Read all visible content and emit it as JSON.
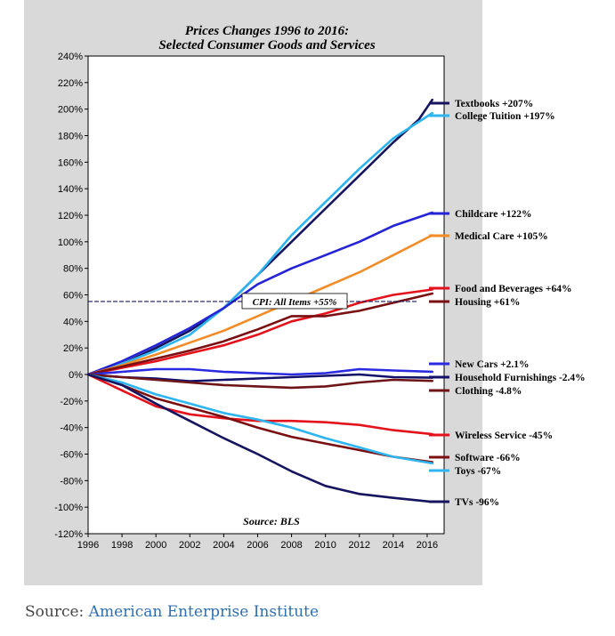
{
  "chart_data": {
    "type": "line",
    "title": "Prices Changes 1996 to 2016:",
    "subtitle": "Selected Consumer Goods and Services",
    "source_note": "Source: BLS",
    "x_ticks": [
      "1996",
      "1998",
      "2000",
      "2002",
      "2004",
      "2006",
      "2008",
      "2010",
      "2012",
      "2014",
      "2016"
    ],
    "xlim": [
      1996,
      2017
    ],
    "ylim": [
      -120,
      240
    ],
    "y_ticks": [
      "-120%",
      "-100%",
      "-80%",
      "-60%",
      "-40%",
      "-20%",
      "0%",
      "20%",
      "40%",
      "60%",
      "80%",
      "100%",
      "120%",
      "140%",
      "160%",
      "180%",
      "200%",
      "220%",
      "240%"
    ],
    "reference_line": {
      "label": "CPI: All Items +55%",
      "value": 55,
      "color": "#1a1a5e"
    },
    "series": [
      {
        "name": "Textbooks +207%",
        "final": 207,
        "color": "#16145e",
        "points": [
          [
            1996,
            0
          ],
          [
            1998,
            8
          ],
          [
            2000,
            20
          ],
          [
            2002,
            33
          ],
          [
            2004,
            50
          ],
          [
            2006,
            75
          ],
          [
            2008,
            100
          ],
          [
            2010,
            125
          ],
          [
            2012,
            150
          ],
          [
            2014,
            175
          ],
          [
            2015.5,
            192
          ],
          [
            2016.3,
            207
          ]
        ]
      },
      {
        "name": "College Tuition +197%",
        "final": 197,
        "color": "#2eb5f0",
        "points": [
          [
            1996,
            0
          ],
          [
            1998,
            8
          ],
          [
            2000,
            18
          ],
          [
            2002,
            30
          ],
          [
            2004,
            50
          ],
          [
            2006,
            75
          ],
          [
            2008,
            105
          ],
          [
            2010,
            130
          ],
          [
            2012,
            155
          ],
          [
            2014,
            178
          ],
          [
            2016.3,
            197
          ]
        ]
      },
      {
        "name": "Childcare +122%",
        "final": 122,
        "color": "#2424d6",
        "points": [
          [
            1996,
            0
          ],
          [
            1998,
            10
          ],
          [
            2000,
            22
          ],
          [
            2002,
            35
          ],
          [
            2004,
            50
          ],
          [
            2006,
            68
          ],
          [
            2008,
            80
          ],
          [
            2010,
            90
          ],
          [
            2012,
            100
          ],
          [
            2014,
            112
          ],
          [
            2016.3,
            122
          ]
        ]
      },
      {
        "name": "Medical Care +105%",
        "final": 105,
        "color": "#f28c28",
        "points": [
          [
            1996,
            0
          ],
          [
            1998,
            7
          ],
          [
            2000,
            15
          ],
          [
            2002,
            24
          ],
          [
            2004,
            33
          ],
          [
            2006,
            44
          ],
          [
            2008,
            55
          ],
          [
            2010,
            66
          ],
          [
            2012,
            77
          ],
          [
            2014,
            90
          ],
          [
            2016.3,
            105
          ]
        ]
      },
      {
        "name": "Food and Beverages +64%",
        "final": 64,
        "color": "#e3121c",
        "points": [
          [
            1996,
            0
          ],
          [
            1998,
            5
          ],
          [
            2000,
            10
          ],
          [
            2002,
            16
          ],
          [
            2004,
            22
          ],
          [
            2006,
            30
          ],
          [
            2008,
            40
          ],
          [
            2010,
            46
          ],
          [
            2012,
            54
          ],
          [
            2014,
            60
          ],
          [
            2016.3,
            64
          ]
        ]
      },
      {
        "name": "Housing +61%",
        "final": 61,
        "color": "#7a0f12",
        "points": [
          [
            1996,
            0
          ],
          [
            1998,
            6
          ],
          [
            2000,
            12
          ],
          [
            2002,
            18
          ],
          [
            2004,
            25
          ],
          [
            2006,
            34
          ],
          [
            2008,
            44
          ],
          [
            2010,
            44
          ],
          [
            2012,
            48
          ],
          [
            2014,
            54
          ],
          [
            2016.3,
            61
          ]
        ]
      },
      {
        "name": "New Cars +2.1%",
        "final": 2.1,
        "color": "#2a2ae0",
        "points": [
          [
            1996,
            0
          ],
          [
            1998,
            2
          ],
          [
            2000,
            4
          ],
          [
            2002,
            4
          ],
          [
            2004,
            2
          ],
          [
            2006,
            1
          ],
          [
            2008,
            0
          ],
          [
            2010,
            1
          ],
          [
            2012,
            4
          ],
          [
            2014,
            3
          ],
          [
            2016.3,
            2.1
          ]
        ]
      },
      {
        "name": "Household Furnishings -2.4%",
        "final": -2.4,
        "color": "#12126a",
        "points": [
          [
            1996,
            0
          ],
          [
            1998,
            -2
          ],
          [
            2000,
            -3
          ],
          [
            2002,
            -5
          ],
          [
            2004,
            -4
          ],
          [
            2006,
            -3
          ],
          [
            2008,
            -2
          ],
          [
            2010,
            -1
          ],
          [
            2012,
            0
          ],
          [
            2014,
            -2
          ],
          [
            2016.3,
            -2.4
          ]
        ]
      },
      {
        "name": "Clothing -4.8%",
        "final": -4.8,
        "color": "#6e1518",
        "points": [
          [
            1996,
            0
          ],
          [
            1998,
            -2
          ],
          [
            2000,
            -4
          ],
          [
            2002,
            -6
          ],
          [
            2004,
            -8
          ],
          [
            2006,
            -9
          ],
          [
            2008,
            -10
          ],
          [
            2010,
            -9
          ],
          [
            2012,
            -6
          ],
          [
            2014,
            -4
          ],
          [
            2016.3,
            -4.8
          ]
        ]
      },
      {
        "name": "Wireless Service -45%",
        "final": -45,
        "color": "#e3121c",
        "points": [
          [
            1996,
            0
          ],
          [
            1998,
            -12
          ],
          [
            2000,
            -24
          ],
          [
            2002,
            -30
          ],
          [
            2004,
            -33
          ],
          [
            2006,
            -35
          ],
          [
            2008,
            -35
          ],
          [
            2010,
            -36
          ],
          [
            2012,
            -38
          ],
          [
            2014,
            -42
          ],
          [
            2016.3,
            -45
          ]
        ]
      },
      {
        "name": "Software -66%",
        "final": -66,
        "color": "#7a0f12",
        "points": [
          [
            1996,
            0
          ],
          [
            1998,
            -8
          ],
          [
            2000,
            -18
          ],
          [
            2002,
            -25
          ],
          [
            2004,
            -32
          ],
          [
            2006,
            -40
          ],
          [
            2008,
            -47
          ],
          [
            2010,
            -52
          ],
          [
            2012,
            -57
          ],
          [
            2014,
            -62
          ],
          [
            2016.3,
            -66
          ]
        ]
      },
      {
        "name": "Toys -67%",
        "final": -67,
        "color": "#2eb5f0",
        "points": [
          [
            1996,
            0
          ],
          [
            1998,
            -6
          ],
          [
            2000,
            -15
          ],
          [
            2002,
            -22
          ],
          [
            2004,
            -29
          ],
          [
            2006,
            -34
          ],
          [
            2008,
            -40
          ],
          [
            2010,
            -48
          ],
          [
            2012,
            -55
          ],
          [
            2014,
            -62
          ],
          [
            2016.3,
            -67
          ]
        ]
      },
      {
        "name": "TVs -96%",
        "final": -96,
        "color": "#16145e",
        "points": [
          [
            1996,
            0
          ],
          [
            1998,
            -8
          ],
          [
            2000,
            -22
          ],
          [
            2002,
            -35
          ],
          [
            2004,
            -48
          ],
          [
            2006,
            -60
          ],
          [
            2008,
            -73
          ],
          [
            2010,
            -84
          ],
          [
            2012,
            -90
          ],
          [
            2014,
            -93
          ],
          [
            2016.3,
            -96
          ]
        ]
      }
    ]
  },
  "footer": {
    "source_prefix": "Source:",
    "source_link": "American Enterprise Institute"
  }
}
